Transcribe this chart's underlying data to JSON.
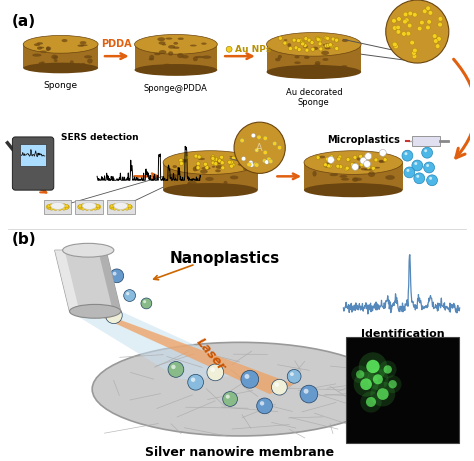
{
  "panel_a_label": "(a)",
  "panel_b_label": "(b)",
  "background_color": "#ffffff",
  "sponge_top_color": "#c8952a",
  "sponge_side_color": "#a07020",
  "sponge_dark": "#6b4510",
  "au_np_color": "#f5d020",
  "arrow_color": "#e06010",
  "water_color": "#4db8e8",
  "laser_orange": "#f0a060",
  "beam_blue": "#b8d8f0",
  "nanowire_mem_color": "#c8c8c8",
  "spec_color": "#5588bb",
  "green_dot_color": "#44cc44",
  "title_a": "PDDA",
  "aunp_label": "Au NPs",
  "title_b_1": "Nanoplastics",
  "title_b_2": "Laser",
  "title_b_3": "Silver nanowire membrane",
  "title_b_4": "Identification",
  "label_sponge": "Sponge",
  "label_sponge_pdda": "Sponge@PDDA",
  "label_au_sponge": "Au decorated\nSponge",
  "label_microplastics": "Microplastics",
  "label_sers": "SERS detection",
  "arrow_pdda_color": "#e06010",
  "arrow_aunp_color": "#b89000",
  "cyl_body": "#c8c8c8",
  "cyl_dark": "#888888",
  "cyl_light": "#e8e8e8"
}
